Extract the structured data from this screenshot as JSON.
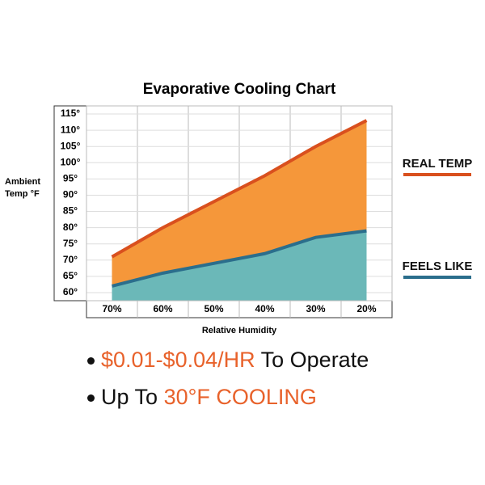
{
  "chart_data": {
    "type": "area",
    "title": "Evaporative Cooling Chart",
    "x_label": "Relative Humidity",
    "y_label": "Ambient Temp °F",
    "categories": [
      "70%",
      "60%",
      "50%",
      "40%",
      "30%",
      "20%"
    ],
    "series": [
      {
        "name": "REAL TEMP",
        "color": "#d9501e",
        "fill": "#f5973a",
        "values": [
          71,
          80,
          88,
          96,
          105,
          113
        ]
      },
      {
        "name": "FEELS LIKE",
        "color": "#2b6e8c",
        "fill": "#6bb8b8",
        "values": [
          62,
          66,
          69,
          72,
          77,
          79
        ]
      }
    ],
    "ylim": [
      57.5,
      117.5
    ],
    "yticks": [
      {
        "value": 60,
        "label": "60°"
      },
      {
        "value": 65,
        "label": "65°"
      },
      {
        "value": 70,
        "label": "70°"
      },
      {
        "value": 75,
        "label": "75°"
      },
      {
        "value": 80,
        "label": "80°"
      },
      {
        "value": 85,
        "label": "85°"
      },
      {
        "value": 90,
        "label": "90°"
      },
      {
        "value": 95,
        "label": "95°"
      },
      {
        "value": 100,
        "label": "100°"
      },
      {
        "value": 105,
        "label": "105°"
      },
      {
        "value": 110,
        "label": "110°"
      },
      {
        "value": 115,
        "label": "115°"
      }
    ],
    "grid": true
  },
  "bullets": [
    {
      "highlight": "$0.01-$0.04/HR",
      "text": "To Operate"
    },
    {
      "text": "Up To",
      "highlight": "30°F COOLING"
    }
  ]
}
